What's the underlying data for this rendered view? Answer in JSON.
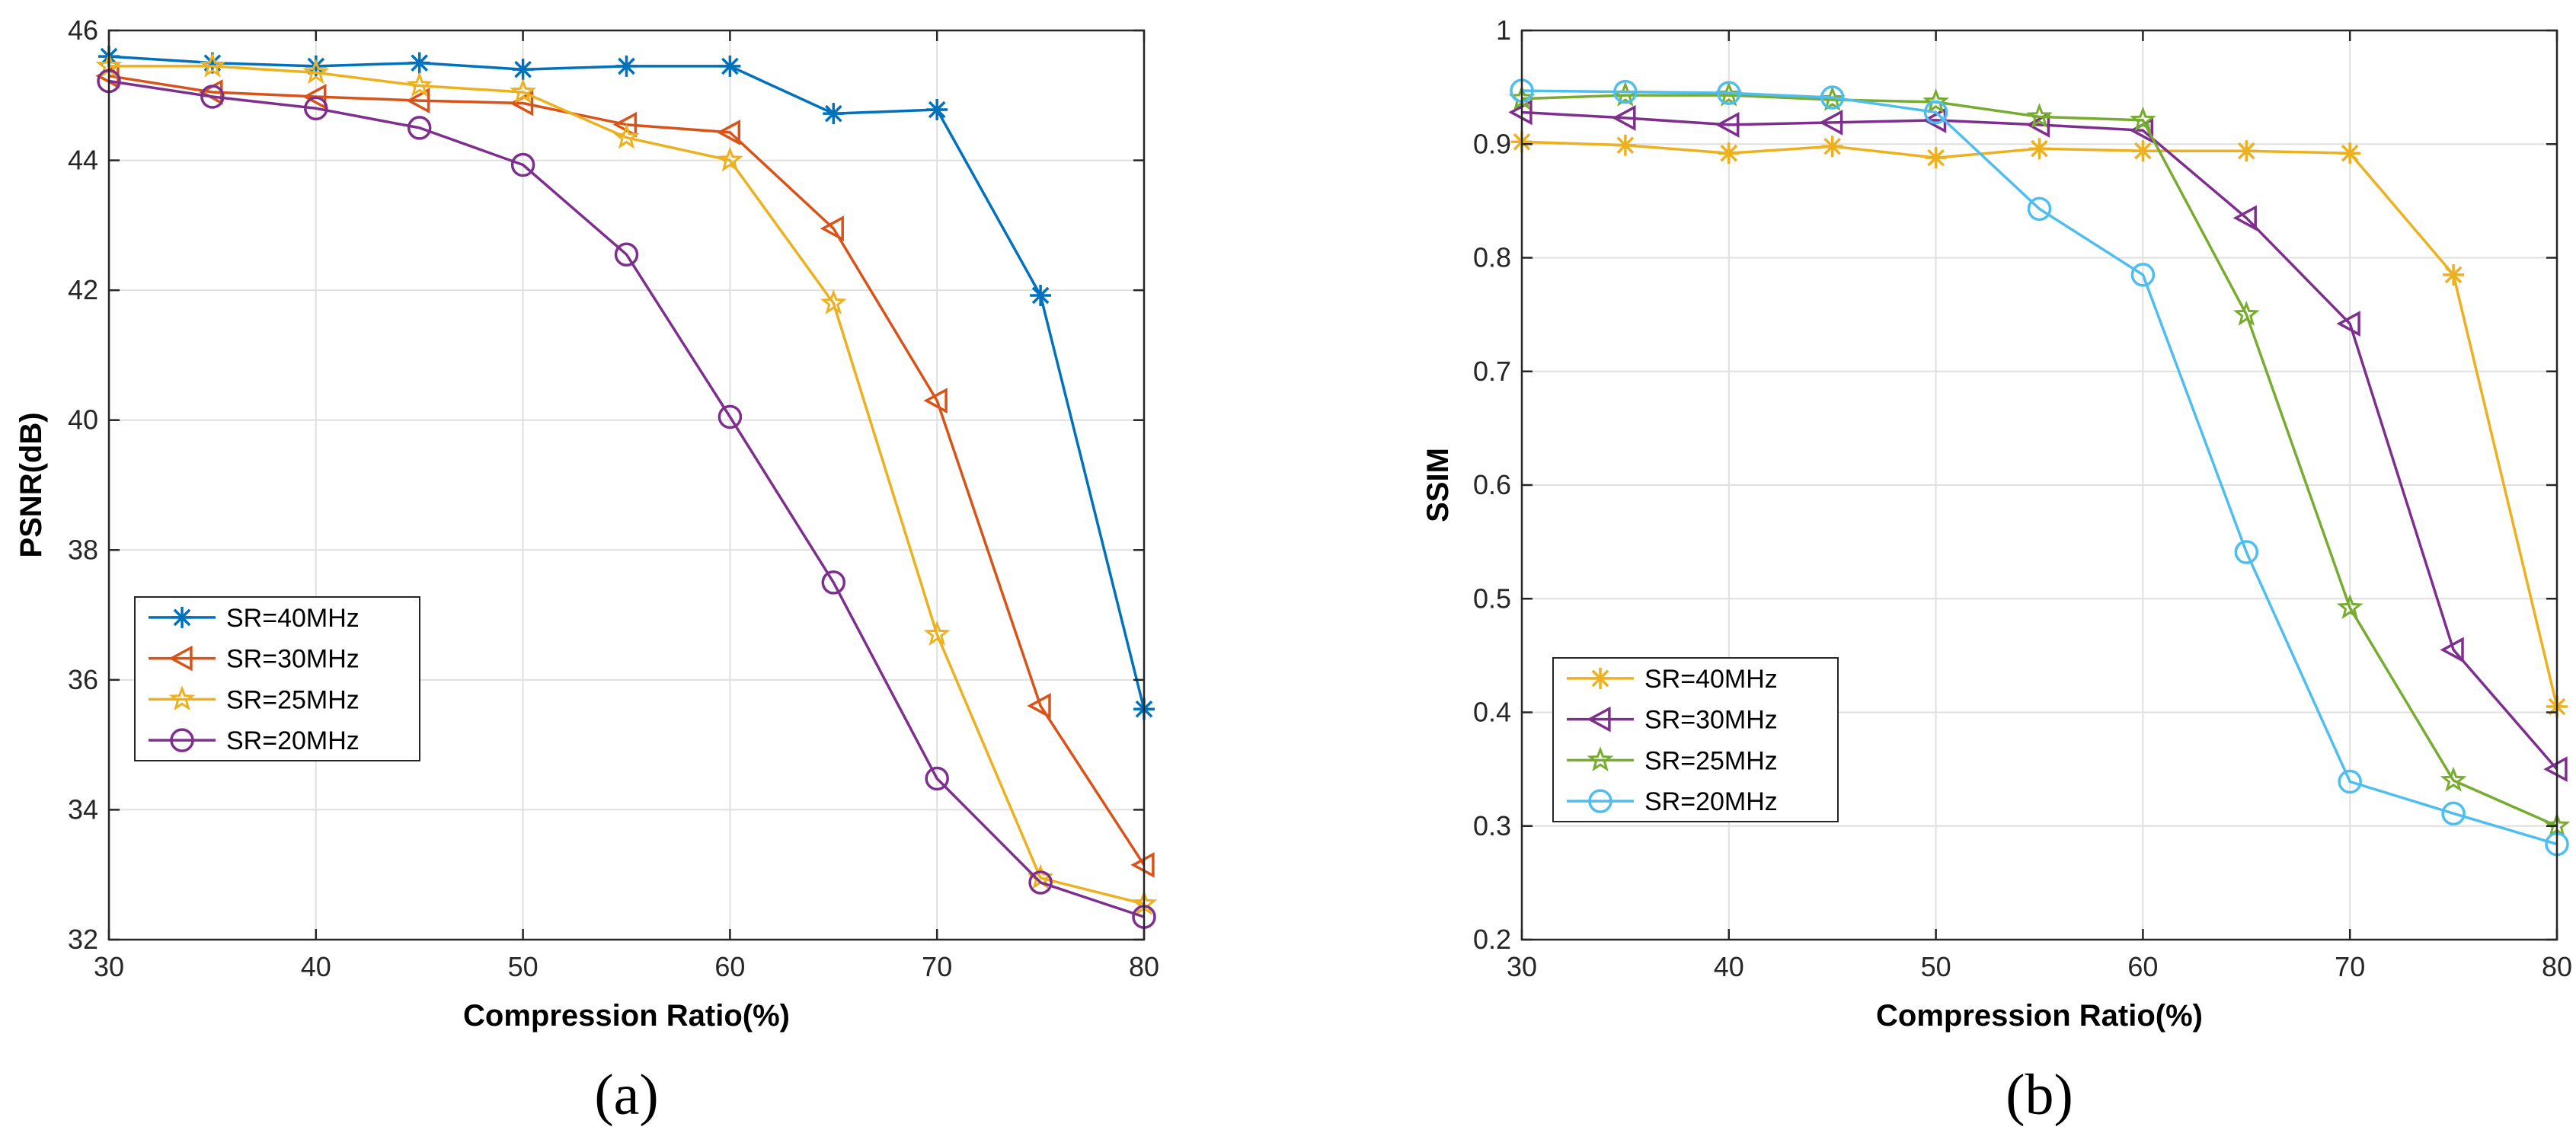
{
  "chart_data": [
    {
      "type": "line",
      "panel_label": "(a)",
      "xlabel": "Compression Ratio(%)",
      "ylabel": "PSNR(dB)",
      "xlim": [
        30,
        80
      ],
      "ylim": [
        32,
        46
      ],
      "xticks": [
        30,
        40,
        50,
        60,
        70,
        80
      ],
      "yticks": [
        32,
        34,
        36,
        38,
        40,
        42,
        44,
        46
      ],
      "grid": true,
      "legend_position": "lower-left",
      "x": [
        30,
        35,
        40,
        45,
        50,
        55,
        60,
        65,
        70,
        75,
        80
      ],
      "series": [
        {
          "name": "SR=40MHz",
          "color": "#0072BD",
          "marker": "asterisk",
          "values": [
            45.6,
            45.5,
            45.45,
            45.5,
            45.4,
            45.45,
            45.45,
            44.72,
            44.78,
            41.92,
            35.55
          ]
        },
        {
          "name": "SR=30MHz",
          "color": "#D95319",
          "marker": "triangle-left",
          "values": [
            45.3,
            45.05,
            44.98,
            44.92,
            44.88,
            44.55,
            44.43,
            42.95,
            40.3,
            35.6,
            33.15
          ]
        },
        {
          "name": "SR=25MHz",
          "color": "#EDB120",
          "marker": "star",
          "values": [
            45.45,
            45.45,
            45.35,
            45.15,
            45.05,
            44.35,
            44.0,
            41.8,
            36.7,
            32.95,
            32.55
          ]
        },
        {
          "name": "SR=20MHz",
          "color": "#7E2F8E",
          "marker": "circle",
          "values": [
            45.22,
            44.98,
            44.8,
            44.5,
            43.93,
            42.55,
            40.05,
            37.5,
            34.48,
            32.88,
            32.35
          ]
        }
      ]
    },
    {
      "type": "line",
      "panel_label": "(b)",
      "xlabel": "Compression Ratio(%)",
      "ylabel": "SSIM",
      "xlim": [
        30,
        80
      ],
      "ylim": [
        0.2,
        1.0
      ],
      "xticks": [
        30,
        40,
        50,
        60,
        70,
        80
      ],
      "yticks": [
        0.2,
        0.3,
        0.4,
        0.5,
        0.6,
        0.7,
        0.8,
        0.9,
        1
      ],
      "grid": true,
      "legend_position": "lower-left",
      "x": [
        30,
        35,
        40,
        45,
        50,
        55,
        60,
        65,
        70,
        75,
        80
      ],
      "series": [
        {
          "name": "SR=40MHz",
          "color": "#EDB120",
          "marker": "asterisk",
          "values": [
            0.902,
            0.899,
            0.892,
            0.898,
            0.888,
            0.896,
            0.894,
            0.894,
            0.892,
            0.785,
            0.405
          ]
        },
        {
          "name": "SR=30MHz",
          "color": "#7E2F8E",
          "marker": "triangle-left",
          "values": [
            0.928,
            0.923,
            0.917,
            0.919,
            0.921,
            0.917,
            0.912,
            0.835,
            0.742,
            0.455,
            0.35
          ]
        },
        {
          "name": "SR=25MHz",
          "color": "#77AC30",
          "marker": "star",
          "values": [
            0.94,
            0.943,
            0.943,
            0.939,
            0.937,
            0.924,
            0.921,
            0.75,
            0.492,
            0.34,
            0.3
          ]
        },
        {
          "name": "SR=20MHz",
          "color": "#4DBEEE",
          "marker": "circle",
          "values": [
            0.947,
            0.946,
            0.945,
            0.941,
            0.928,
            0.843,
            0.785,
            0.541,
            0.339,
            0.311,
            0.284
          ]
        }
      ]
    }
  ]
}
